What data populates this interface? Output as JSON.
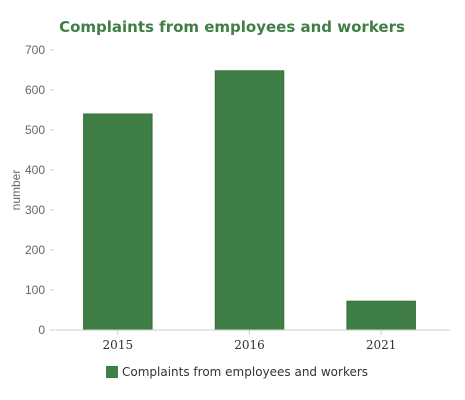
{
  "chart_data": {
    "type": "bar",
    "title": "Complaints from employees and workers",
    "xlabel": "",
    "ylabel": "number",
    "categories": [
      "2015",
      "2016",
      "2021"
    ],
    "series": [
      {
        "name": "Complaints from employees and workers",
        "values": [
          540,
          648,
          72
        ]
      }
    ],
    "ylim": [
      0,
      700
    ],
    "yticks": [
      0,
      100,
      200,
      300,
      400,
      500,
      600,
      700
    ],
    "grid": false,
    "legend": "bottom",
    "colors": {
      "bar": "#3f7f45",
      "bar_stroke": "#356b3a",
      "title": "#3f7f45",
      "axis": "#cccccc"
    }
  }
}
